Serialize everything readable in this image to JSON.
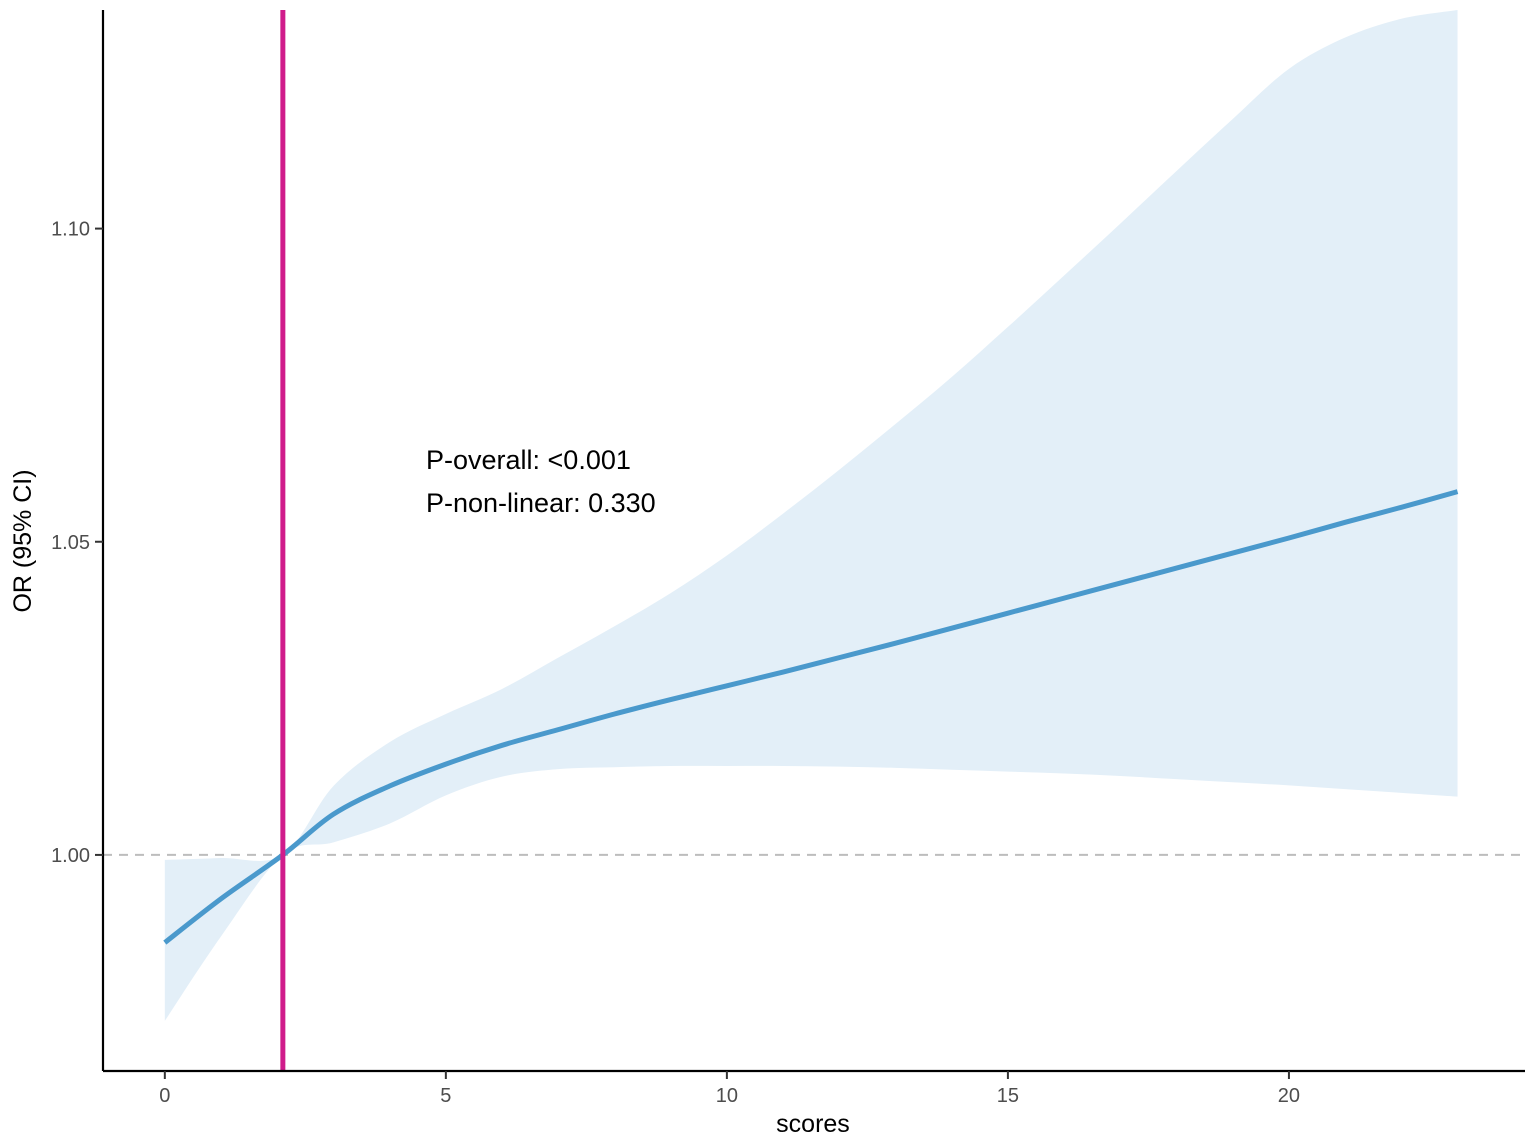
{
  "chart_data": {
    "type": "line",
    "title": "",
    "xlabel": "scores",
    "ylabel": "OR (95% CI)",
    "xlim": [
      -1.1,
      24.2
    ],
    "ylim": [
      0.9655,
      1.1349
    ],
    "x_ticks": [
      0,
      5,
      10,
      15,
      20
    ],
    "x_tick_labels": [
      "0",
      "5",
      "10",
      "15",
      "20"
    ],
    "y_ticks": [
      1.0,
      1.05,
      1.1
    ],
    "y_tick_labels": [
      "1.00",
      "1.05",
      "1.10"
    ],
    "grid": false,
    "reference_line": {
      "y": 1.0,
      "style": "dashed",
      "color": "#bdbdbd"
    },
    "vertical_line": {
      "x": 2.1,
      "color": "#d01c8b"
    },
    "annotations": [
      "P-overall: <0.001",
      "P-non-linear: 0.330"
    ],
    "series": [
      {
        "x": [
          0,
          1,
          2.1,
          3,
          4,
          5,
          6,
          7,
          8,
          9,
          10,
          11,
          12,
          13,
          14,
          15,
          16,
          17,
          18,
          19,
          20,
          21,
          22,
          23
        ],
        "y": [
          0.986,
          0.993,
          1.0,
          1.0065,
          1.011,
          1.0145,
          1.0175,
          1.02,
          1.0225,
          1.0248,
          1.027,
          1.0292,
          1.0315,
          1.0338,
          1.0362,
          1.0386,
          1.041,
          1.0434,
          1.0458,
          1.0482,
          1.0506,
          1.0531,
          1.0555,
          1.058
        ],
        "lower": [
          0.9735,
          0.987,
          1.0,
          1.002,
          1.005,
          1.0095,
          1.0125,
          1.0137,
          1.014,
          1.0142,
          1.0142,
          1.0142,
          1.0141,
          1.0139,
          1.0136,
          1.0133,
          1.013,
          1.0126,
          1.0121,
          1.0116,
          1.0111,
          1.0105,
          1.0099,
          1.0093
        ],
        "upper": [
          0.9992,
          0.9995,
          1.0,
          1.011,
          1.018,
          1.0225,
          1.0265,
          1.0315,
          1.0365,
          1.0418,
          1.0478,
          1.0545,
          1.0615,
          1.0688,
          1.0763,
          1.0843,
          1.0925,
          1.1008,
          1.1092,
          1.1175,
          1.1255,
          1.1305,
          1.1335,
          1.1349
        ],
        "line_color": "#4a99cc",
        "band_color": "#e3eff8"
      }
    ]
  }
}
